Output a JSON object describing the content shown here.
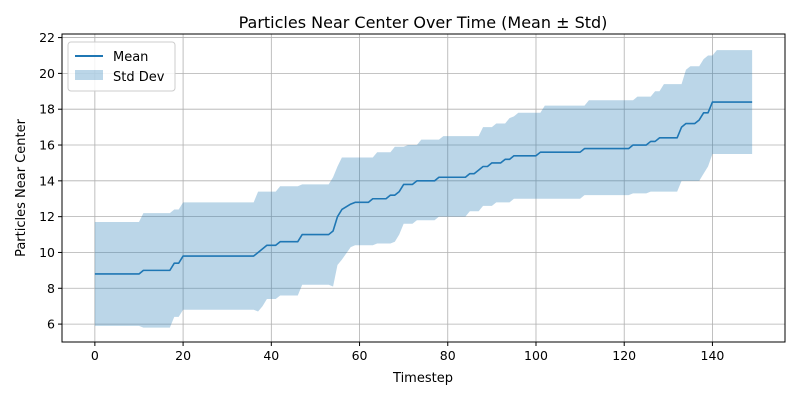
{
  "chart_data": {
    "type": "line",
    "title": "Particles Near Center Over Time (Mean ± Std)",
    "xlabel": "Timestep",
    "ylabel": "Particles Near Center",
    "xlim": [
      -7.45,
      156.45
    ],
    "ylim": [
      5.0,
      22.2
    ],
    "xticks": [
      0,
      20,
      40,
      60,
      80,
      100,
      120,
      140
    ],
    "yticks": [
      6,
      8,
      10,
      12,
      14,
      16,
      18,
      20,
      22
    ],
    "grid": true,
    "legend": {
      "placement": "top-left",
      "entries": [
        "Mean",
        "Std Dev"
      ]
    },
    "colors": {
      "mean": "#1f77b4",
      "band": "#1f77b4"
    },
    "series": [
      {
        "name": "Mean",
        "points": [
          [
            0,
            8.8
          ],
          [
            10,
            8.8
          ],
          [
            11,
            9.0
          ],
          [
            17,
            9.0
          ],
          [
            18,
            9.4
          ],
          [
            19,
            9.4
          ],
          [
            20,
            9.8
          ],
          [
            36,
            9.8
          ],
          [
            37,
            10.0
          ],
          [
            38,
            10.2
          ],
          [
            39,
            10.4
          ],
          [
            41,
            10.4
          ],
          [
            42,
            10.6
          ],
          [
            46,
            10.6
          ],
          [
            47,
            11.0
          ],
          [
            53,
            11.0
          ],
          [
            54,
            11.2
          ],
          [
            55,
            12.0
          ],
          [
            56,
            12.4
          ],
          [
            58,
            12.7
          ],
          [
            59,
            12.8
          ],
          [
            62,
            12.8
          ],
          [
            63,
            13.0
          ],
          [
            66,
            13.0
          ],
          [
            67,
            13.2
          ],
          [
            68,
            13.2
          ],
          [
            69,
            13.4
          ],
          [
            70,
            13.8
          ],
          [
            72,
            13.8
          ],
          [
            73,
            14.0
          ],
          [
            77,
            14.0
          ],
          [
            78,
            14.2
          ],
          [
            84,
            14.2
          ],
          [
            85,
            14.4
          ],
          [
            86,
            14.4
          ],
          [
            87,
            14.6
          ],
          [
            88,
            14.8
          ],
          [
            89,
            14.8
          ],
          [
            90,
            15.0
          ],
          [
            92,
            15.0
          ],
          [
            93,
            15.2
          ],
          [
            94,
            15.2
          ],
          [
            95,
            15.4
          ],
          [
            100,
            15.4
          ],
          [
            101,
            15.6
          ],
          [
            110,
            15.6
          ],
          [
            111,
            15.8
          ],
          [
            121,
            15.8
          ],
          [
            122,
            16.0
          ],
          [
            125,
            16.0
          ],
          [
            126,
            16.2
          ],
          [
            127,
            16.2
          ],
          [
            128,
            16.4
          ],
          [
            132,
            16.4
          ],
          [
            133,
            17.0
          ],
          [
            134,
            17.2
          ],
          [
            136,
            17.2
          ],
          [
            137,
            17.4
          ],
          [
            138,
            17.8
          ],
          [
            139,
            17.8
          ],
          [
            140,
            18.4
          ],
          [
            149,
            18.4
          ]
        ]
      },
      {
        "name": "Std Dev",
        "upper": [
          [
            0,
            11.7
          ],
          [
            10,
            11.7
          ],
          [
            11,
            12.2
          ],
          [
            17,
            12.2
          ],
          [
            18,
            12.4
          ],
          [
            19,
            12.4
          ],
          [
            20,
            12.8
          ],
          [
            36,
            12.8
          ],
          [
            37,
            13.4
          ],
          [
            41,
            13.4
          ],
          [
            42,
            13.7
          ],
          [
            46,
            13.7
          ],
          [
            47,
            13.8
          ],
          [
            53,
            13.8
          ],
          [
            54,
            14.2
          ],
          [
            55,
            14.8
          ],
          [
            56,
            15.3
          ],
          [
            63,
            15.3
          ],
          [
            64,
            15.6
          ],
          [
            67,
            15.6
          ],
          [
            68,
            15.9
          ],
          [
            70,
            15.9
          ],
          [
            71,
            16.0
          ],
          [
            73,
            16.0
          ],
          [
            74,
            16.3
          ],
          [
            78,
            16.3
          ],
          [
            79,
            16.5
          ],
          [
            87,
            16.5
          ],
          [
            88,
            17.0
          ],
          [
            90,
            17.0
          ],
          [
            91,
            17.2
          ],
          [
            93,
            17.2
          ],
          [
            94,
            17.5
          ],
          [
            95,
            17.6
          ],
          [
            96,
            17.8
          ],
          [
            101,
            17.8
          ],
          [
            102,
            18.2
          ],
          [
            111,
            18.2
          ],
          [
            112,
            18.5
          ],
          [
            122,
            18.5
          ],
          [
            123,
            18.7
          ],
          [
            126,
            18.7
          ],
          [
            127,
            19.0
          ],
          [
            128,
            19.0
          ],
          [
            129,
            19.4
          ],
          [
            133,
            19.4
          ],
          [
            134,
            20.2
          ],
          [
            135,
            20.4
          ],
          [
            137,
            20.4
          ],
          [
            138,
            20.8
          ],
          [
            139,
            21.0
          ],
          [
            140,
            21.0
          ],
          [
            141,
            21.3
          ],
          [
            149,
            21.3
          ]
        ],
        "lower": [
          [
            0,
            5.9
          ],
          [
            10,
            5.9
          ],
          [
            11,
            5.8
          ],
          [
            17,
            5.8
          ],
          [
            18,
            6.4
          ],
          [
            19,
            6.4
          ],
          [
            20,
            6.8
          ],
          [
            36,
            6.8
          ],
          [
            37,
            6.7
          ],
          [
            38,
            7.0
          ],
          [
            39,
            7.4
          ],
          [
            41,
            7.4
          ],
          [
            42,
            7.6
          ],
          [
            46,
            7.6
          ],
          [
            47,
            8.2
          ],
          [
            53,
            8.2
          ],
          [
            54,
            8.1
          ],
          [
            55,
            9.3
          ],
          [
            56,
            9.6
          ],
          [
            58,
            10.3
          ],
          [
            59,
            10.4
          ],
          [
            63,
            10.4
          ],
          [
            64,
            10.5
          ],
          [
            67,
            10.5
          ],
          [
            68,
            10.6
          ],
          [
            69,
            11.0
          ],
          [
            70,
            11.6
          ],
          [
            72,
            11.6
          ],
          [
            73,
            11.8
          ],
          [
            77,
            11.8
          ],
          [
            78,
            12.0
          ],
          [
            84,
            12.0
          ],
          [
            85,
            12.3
          ],
          [
            87,
            12.3
          ],
          [
            88,
            12.6
          ],
          [
            90,
            12.6
          ],
          [
            91,
            12.8
          ],
          [
            94,
            12.8
          ],
          [
            95,
            13.0
          ],
          [
            110,
            13.0
          ],
          [
            111,
            13.2
          ],
          [
            121,
            13.2
          ],
          [
            122,
            13.3
          ],
          [
            125,
            13.3
          ],
          [
            126,
            13.4
          ],
          [
            132,
            13.4
          ],
          [
            133,
            14.0
          ],
          [
            137,
            14.0
          ],
          [
            138,
            14.4
          ],
          [
            139,
            14.8
          ],
          [
            140,
            15.5
          ],
          [
            149,
            15.5
          ]
        ]
      }
    ]
  }
}
